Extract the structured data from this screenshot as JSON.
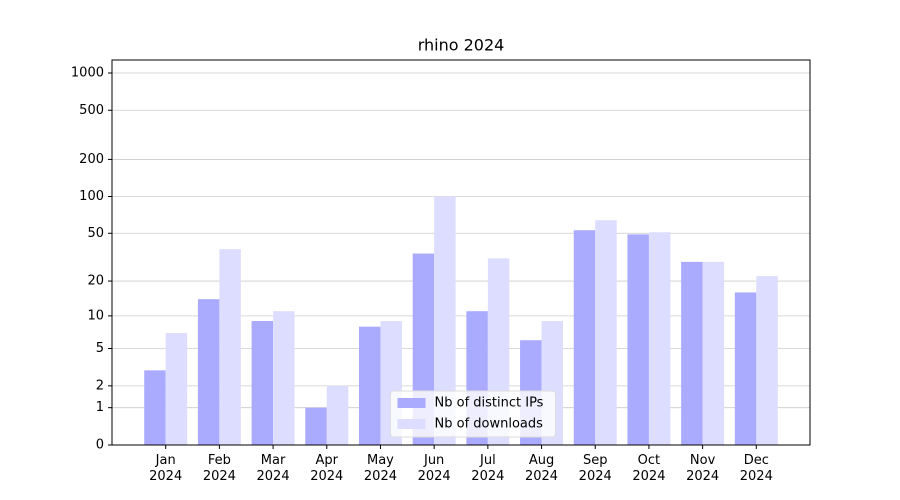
{
  "chart_data": {
    "type": "bar",
    "title": "rhino 2024",
    "scale": "log1p",
    "categories": [
      "Jan\n2024",
      "Feb\n2024",
      "Mar\n2024",
      "Apr\n2024",
      "May\n2024",
      "Jun\n2024",
      "Jul\n2024",
      "Aug\n2024",
      "Sep\n2024",
      "Oct\n2024",
      "Nov\n2024",
      "Dec\n2024"
    ],
    "series": [
      {
        "name": "Nb of distinct IPs",
        "color": "#aaaaff",
        "values": [
          3,
          14,
          9,
          1,
          8,
          34,
          11,
          6,
          53,
          49,
          29,
          16
        ]
      },
      {
        "name": "Nb of downloads",
        "color": "#ddddff",
        "values": [
          7,
          37,
          11,
          2,
          9,
          100,
          31,
          9,
          64,
          51,
          29,
          22
        ]
      }
    ],
    "ylim": [
      0,
      1273
    ],
    "yticks": [
      0,
      1,
      2,
      5,
      10,
      20,
      50,
      100,
      200,
      500,
      1000
    ],
    "grid": true,
    "legend": "lower center"
  }
}
